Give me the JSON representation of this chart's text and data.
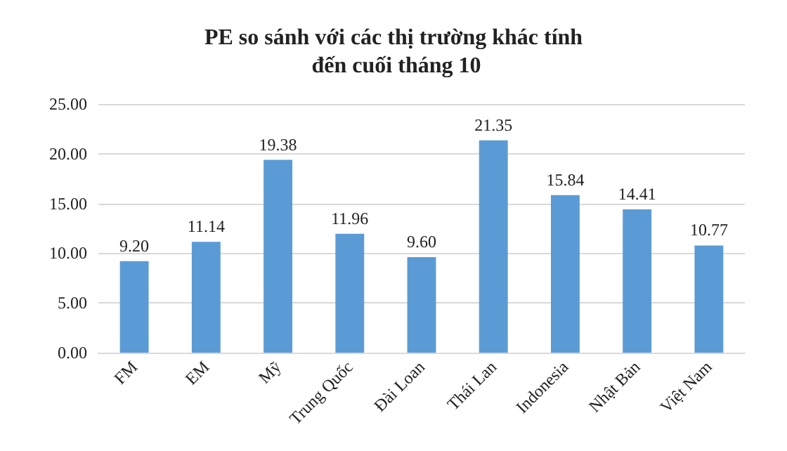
{
  "chart_data": {
    "type": "bar",
    "title": "PE so sánh với các thị trường khác tính đến cuối tháng 10",
    "categories": [
      "FM",
      "EM",
      "Mỹ",
      "Trung Quốc",
      "Đài Loan",
      "Thái Lan",
      "Indonesia",
      "Nhật Bản",
      "Việt Nam"
    ],
    "values": [
      9.2,
      11.14,
      19.38,
      11.96,
      9.6,
      21.35,
      15.84,
      14.41,
      10.77
    ],
    "value_labels": [
      "9.20",
      "11.14",
      "19.38",
      "11.96",
      "9.60",
      "21.35",
      "15.84",
      "14.41",
      "10.77"
    ],
    "color": "#5b9bd5",
    "ylim": [
      0,
      25
    ],
    "yticks": [
      {
        "value": 0,
        "label": "0.00"
      },
      {
        "value": 5,
        "label": "5.00"
      },
      {
        "value": 10,
        "label": "10.00"
      },
      {
        "value": 15,
        "label": "15.00"
      },
      {
        "value": 20,
        "label": "20.00"
      },
      {
        "value": 25,
        "label": "25.00"
      }
    ],
    "grid": "y"
  }
}
